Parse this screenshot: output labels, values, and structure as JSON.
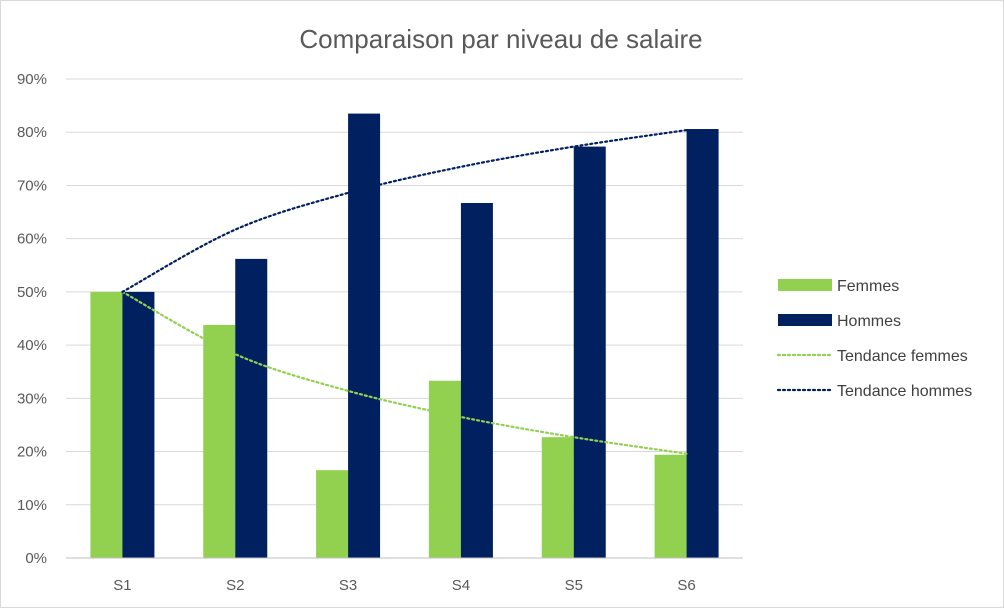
{
  "chart_data": {
    "type": "bar",
    "title": "Comparaison par niveau de salaire",
    "xlabel": "",
    "ylabel": "",
    "categories": [
      "S1",
      "S2",
      "S3",
      "S4",
      "S5",
      "S6"
    ],
    "ylim": [
      0,
      90
    ],
    "yticks": [
      0,
      10,
      20,
      30,
      40,
      50,
      60,
      70,
      80,
      90
    ],
    "ytick_labels": [
      "0%",
      "10%",
      "20%",
      "30%",
      "40%",
      "50%",
      "60%",
      "70%",
      "80%",
      "90%"
    ],
    "grid": true,
    "legend_position": "right",
    "series": [
      {
        "name": "Femmes",
        "type": "bar",
        "color": "#92d050",
        "values": [
          50,
          43.8,
          16.5,
          33.3,
          22.7,
          19.4
        ]
      },
      {
        "name": "Hommes",
        "type": "bar",
        "color": "#002060",
        "values": [
          50,
          56.2,
          83.5,
          66.7,
          77.3,
          80.6
        ]
      },
      {
        "name": "Tendance femmes",
        "type": "trendline",
        "style": "dotted",
        "color": "#92d050",
        "values": [
          50,
          38.3,
          31.4,
          26.5,
          22.7,
          19.6
        ]
      },
      {
        "name": "Tendance hommes",
        "type": "trendline",
        "style": "dotted",
        "color": "#002060",
        "values": [
          50,
          61.7,
          68.6,
          73.5,
          77.3,
          80.4
        ]
      }
    ]
  }
}
